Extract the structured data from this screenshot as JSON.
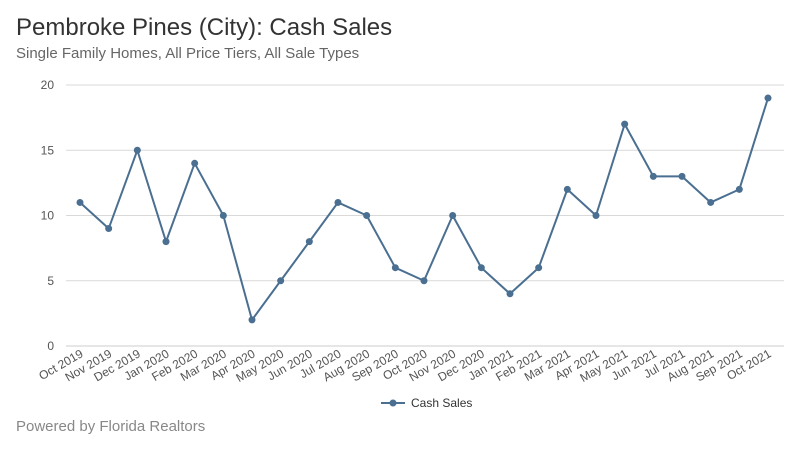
{
  "header": {
    "title": "Pembroke Pines (City): Cash Sales",
    "subtitle": "Single Family Homes, All Price Tiers, All Sale Types"
  },
  "footer": {
    "text": "Powered by Florida Realtors"
  },
  "colors": {
    "series": "#4a6f91",
    "grid": "#d9d9d9",
    "axis": "#cccccc"
  },
  "chart_data": {
    "type": "line",
    "title": "Pembroke Pines (City): Cash Sales",
    "subtitle": "Single Family Homes, All Price Tiers, All Sale Types",
    "xlabel": "",
    "ylabel": "",
    "ylim": [
      0,
      20
    ],
    "yticks": [
      0,
      5,
      10,
      15,
      20
    ],
    "grid": true,
    "legend_position": "bottom-center",
    "categories": [
      "Oct 2019",
      "Nov 2019",
      "Dec 2019",
      "Jan 2020",
      "Feb 2020",
      "Mar 2020",
      "Apr 2020",
      "May 2020",
      "Jun 2020",
      "Jul 2020",
      "Aug 2020",
      "Sep 2020",
      "Oct 2020",
      "Nov 2020",
      "Dec 2020",
      "Jan 2021",
      "Feb 2021",
      "Mar 2021",
      "Apr 2021",
      "May 2021",
      "Jun 2021",
      "Jul 2021",
      "Aug 2021",
      "Sep 2021",
      "Oct 2021"
    ],
    "series": [
      {
        "name": "Cash Sales",
        "values": [
          11,
          9,
          15,
          8,
          14,
          10,
          2,
          5,
          8,
          11,
          10,
          6,
          5,
          10,
          6,
          4,
          6,
          12,
          10,
          17,
          13,
          13,
          11,
          12,
          19
        ]
      }
    ]
  }
}
